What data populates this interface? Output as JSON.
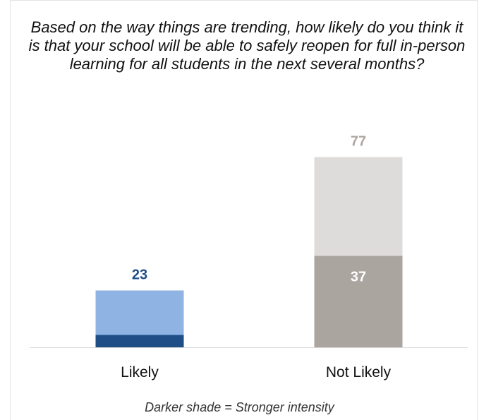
{
  "chart_data": {
    "type": "bar",
    "title": "Based on the way things are trending, how likely do you think it is that your school will be able to safely reopen for full in-person learning for all students in the next several months?",
    "categories": [
      "Likely",
      "Not Likely"
    ],
    "totals": [
      23,
      77
    ],
    "strong_values": [
      5,
      37
    ],
    "strong_labels": [
      "",
      "37"
    ],
    "total_labels": [
      "23",
      "77"
    ],
    "ylim": [
      0,
      80
    ],
    "grid": false,
    "colors": {
      "likely_light": "#8fb4e3",
      "likely_dark": "#1f4e87",
      "likely_label": "#1f4e87",
      "notlikely_light": "#dedcdb",
      "notlikely_dark": "#aba5a0",
      "notlikely_label": "#aba5a0",
      "inner_label": "#ffffff"
    },
    "footnote": "Darker shade = Stronger intensity"
  }
}
